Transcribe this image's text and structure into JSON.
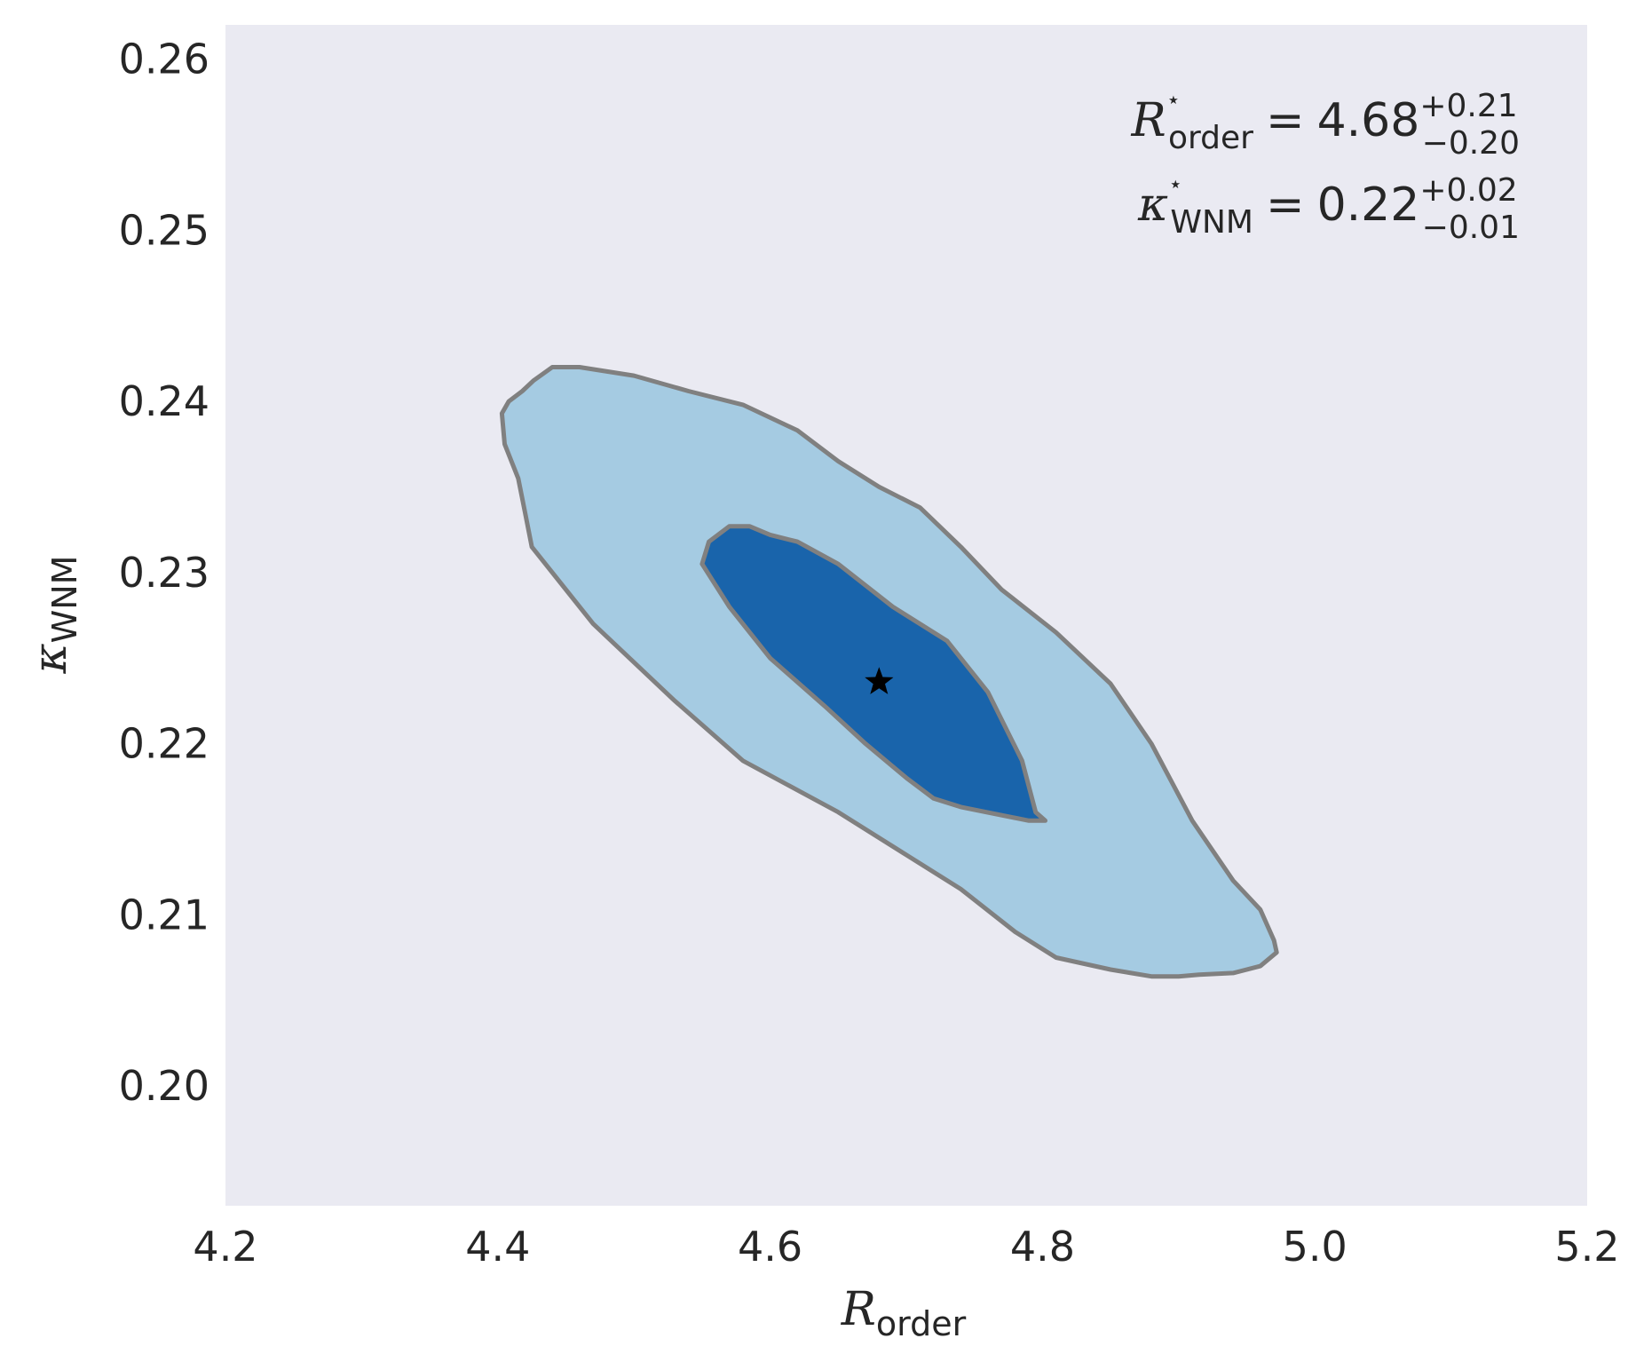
{
  "chart_data": {
    "type": "contour",
    "xlabel": {
      "symbol": "R",
      "subscript": "order"
    },
    "ylabel": {
      "symbol": "κ",
      "subscript": "WNM"
    },
    "xlim": [
      4.2,
      5.2
    ],
    "ylim": [
      0.193,
      0.262
    ],
    "xticks": [
      "4.2",
      "4.4",
      "4.6",
      "4.8",
      "5.0",
      "5.2"
    ],
    "yticks": [
      "0.20",
      "0.21",
      "0.22",
      "0.23",
      "0.24",
      "0.25",
      "0.26"
    ],
    "grid": false,
    "background": "#eaeaf2",
    "best_fit": {
      "x": 4.68,
      "y": 0.2236,
      "marker": "star",
      "color": "#000000"
    },
    "contours": [
      {
        "level": "outer",
        "fill": "#a5cbe2",
        "stroke": "#808080",
        "points": [
          [
            4.403,
            0.2393
          ],
          [
            4.408,
            0.24
          ],
          [
            4.418,
            0.2406
          ],
          [
            4.426,
            0.2412
          ],
          [
            4.44,
            0.242
          ],
          [
            4.46,
            0.242
          ],
          [
            4.5,
            0.2415
          ],
          [
            4.54,
            0.2406
          ],
          [
            4.58,
            0.2398
          ],
          [
            4.62,
            0.2383
          ],
          [
            4.65,
            0.2365
          ],
          [
            4.68,
            0.235
          ],
          [
            4.71,
            0.2338
          ],
          [
            4.74,
            0.2315
          ],
          [
            4.77,
            0.229
          ],
          [
            4.81,
            0.2265
          ],
          [
            4.85,
            0.2235
          ],
          [
            4.88,
            0.22
          ],
          [
            4.91,
            0.2155
          ],
          [
            4.94,
            0.212
          ],
          [
            4.96,
            0.2103
          ],
          [
            4.97,
            0.2085
          ],
          [
            4.972,
            0.2078
          ],
          [
            4.96,
            0.207
          ],
          [
            4.94,
            0.2066
          ],
          [
            4.915,
            0.2065
          ],
          [
            4.9,
            0.2064
          ],
          [
            4.88,
            0.2064
          ],
          [
            4.85,
            0.2068
          ],
          [
            4.81,
            0.2075
          ],
          [
            4.78,
            0.209
          ],
          [
            4.74,
            0.2115
          ],
          [
            4.7,
            0.2135
          ],
          [
            4.65,
            0.216
          ],
          [
            4.58,
            0.219
          ],
          [
            4.53,
            0.2225
          ],
          [
            4.47,
            0.227
          ],
          [
            4.425,
            0.2315
          ],
          [
            4.42,
            0.2335
          ],
          [
            4.415,
            0.2355
          ],
          [
            4.405,
            0.2375
          ],
          [
            4.403,
            0.2393
          ]
        ]
      },
      {
        "level": "inner",
        "fill": "#1964ab",
        "stroke": "#808080",
        "points": [
          [
            4.55,
            0.2305
          ],
          [
            4.555,
            0.2318
          ],
          [
            4.57,
            0.2327
          ],
          [
            4.585,
            0.2327
          ],
          [
            4.6,
            0.2322
          ],
          [
            4.62,
            0.2318
          ],
          [
            4.65,
            0.2305
          ],
          [
            4.69,
            0.228
          ],
          [
            4.73,
            0.226
          ],
          [
            4.76,
            0.223
          ],
          [
            4.785,
            0.219
          ],
          [
            4.795,
            0.216
          ],
          [
            4.802,
            0.2155
          ],
          [
            4.79,
            0.2155
          ],
          [
            4.74,
            0.2163
          ],
          [
            4.72,
            0.2168
          ],
          [
            4.7,
            0.218
          ],
          [
            4.67,
            0.22
          ],
          [
            4.64,
            0.2222
          ],
          [
            4.6,
            0.225
          ],
          [
            4.57,
            0.228
          ],
          [
            4.55,
            0.2305
          ]
        ]
      }
    ],
    "annotations": [
      {
        "symbol": "R",
        "star": "⋆",
        "subscript": "order",
        "equals": "=",
        "value": "4.68",
        "plus": "+0.21",
        "minus": "−0.20"
      },
      {
        "symbol": "κ",
        "star": "⋆",
        "subscript": "WNM",
        "equals": "=",
        "value": "0.22",
        "plus": "+0.02",
        "minus": "−0.01"
      }
    ]
  }
}
